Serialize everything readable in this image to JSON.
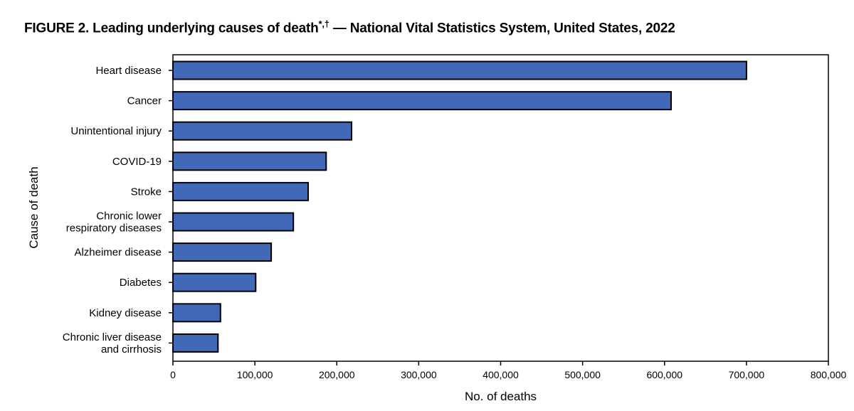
{
  "figure": {
    "title": "FIGURE 2. Leading underlying causes of death",
    "title_note": "*,†",
    "title_rest": " — National Vital Statistics System, United States, 2022"
  },
  "colors": {
    "bar": "#4169b8",
    "bar_outline": "#000000"
  },
  "chart_data": {
    "type": "bar",
    "orientation": "horizontal",
    "categories": [
      "Heart disease",
      "Cancer",
      "Unintentional injury",
      "COVID-19",
      "Stroke",
      "Chronic lower respiratory diseases",
      "Alzheimer disease",
      "Diabetes",
      "Kidney disease",
      "Chronic liver disease and cirrhosis"
    ],
    "category_label_lines": [
      [
        "Heart disease"
      ],
      [
        "Cancer"
      ],
      [
        "Unintentional injury"
      ],
      [
        "COVID-19"
      ],
      [
        "Stroke"
      ],
      [
        "Chronic lower",
        "respiratory diseases"
      ],
      [
        "Alzheimer disease"
      ],
      [
        "Diabetes"
      ],
      [
        "Kidney disease"
      ],
      [
        "Chronic liver disease",
        "and cirrhosis"
      ]
    ],
    "values": [
      700000,
      608000,
      218000,
      187000,
      165000,
      147000,
      120000,
      101000,
      58000,
      55000
    ],
    "xlabel": "No. of deaths",
    "ylabel": "Cause of death",
    "xlim": [
      0,
      800000
    ],
    "xticks": [
      0,
      100000,
      200000,
      300000,
      400000,
      500000,
      600000,
      700000,
      800000
    ],
    "xtick_labels": [
      "0",
      "100,000",
      "200,000",
      "300,000",
      "400,000",
      "500,000",
      "600,000",
      "700,000",
      "800,000"
    ],
    "grid": false,
    "legend": "none"
  }
}
